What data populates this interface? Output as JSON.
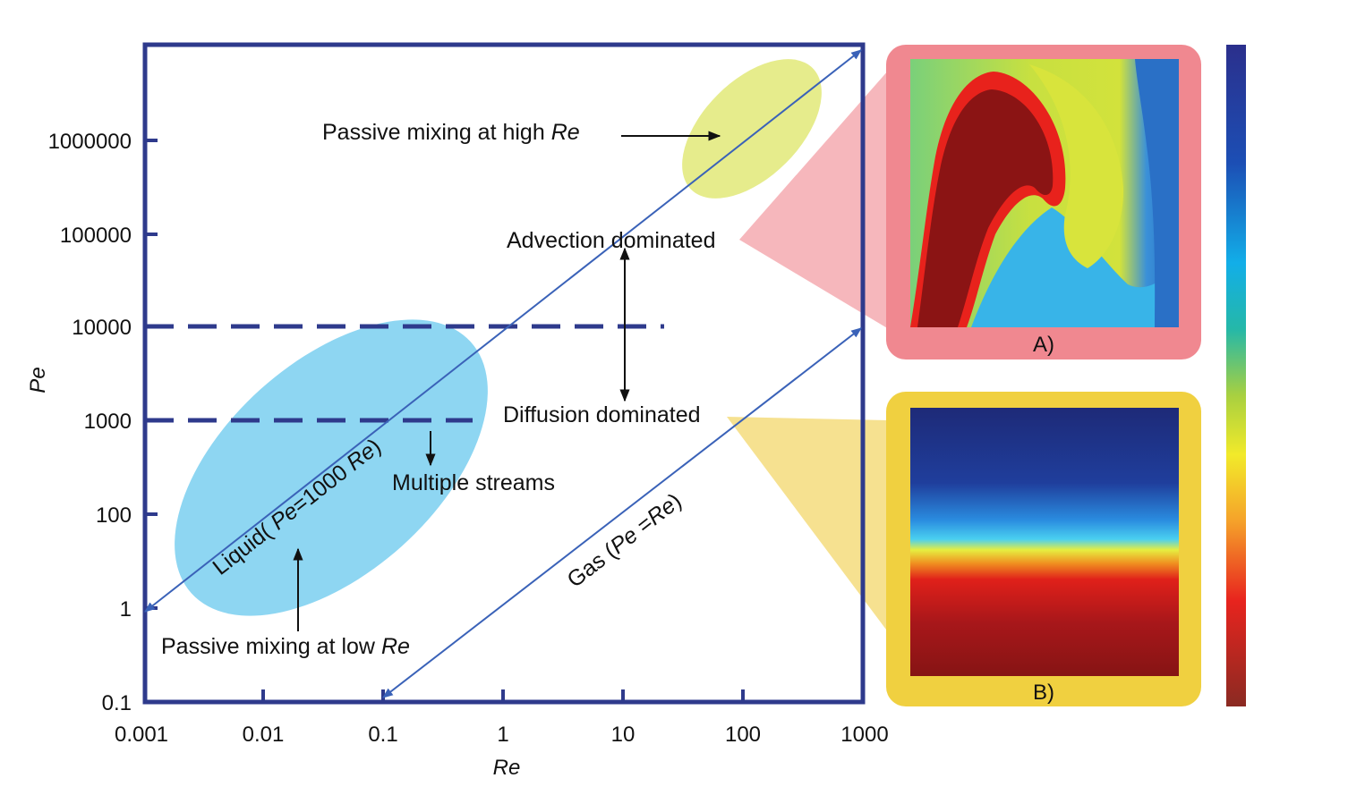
{
  "chart_data": {
    "type": "diagram",
    "xlabel": "Re",
    "ylabel": "Pe",
    "x_scale": "log",
    "y_scale": "log",
    "xlim": [
      0.001,
      1000
    ],
    "x_ticks": [
      "0.001",
      "0.01",
      "0.1",
      "1",
      "10",
      "100",
      "1000"
    ],
    "y_ticks": [
      "0.1",
      "1",
      "100",
      "1000",
      "10000",
      "100000",
      "1000000"
    ],
    "regions": {
      "high_re": "Passive mixing at high ",
      "high_re_em": "Re",
      "low_re": "Passive mixing at low ",
      "low_re_em": "Re",
      "advection": "Advection dominated",
      "diffusion": "Diffusion dominated",
      "multiple_streams": "Multiple streams"
    },
    "lines": {
      "liquid_a": "Liquid( ",
      "liquid_b": "Pe",
      "liquid_c": "=1000 ",
      "liquid_d": "Re",
      "liquid_e": ")",
      "gas_a": "Gas (",
      "gas_b": "Pe",
      "gas_c": " =",
      "gas_d": "Re",
      "gas_e": ")"
    },
    "thresholds": {
      "upper_pe": 10000,
      "lower_pe": 1000
    }
  },
  "panels": {
    "a_label": "A)",
    "b_label": "B)"
  },
  "colors": {
    "axis": "#2e3a8c",
    "lines": "#3a62b8",
    "liquid_region": "#8ed6f2",
    "high_re_region": "#e6ec8c",
    "panel_a_frame": "#f08890",
    "panel_a_cone": "#f6b3b8",
    "panel_b_frame": "#f0d040",
    "panel_b_cone": "#f5df8a"
  }
}
